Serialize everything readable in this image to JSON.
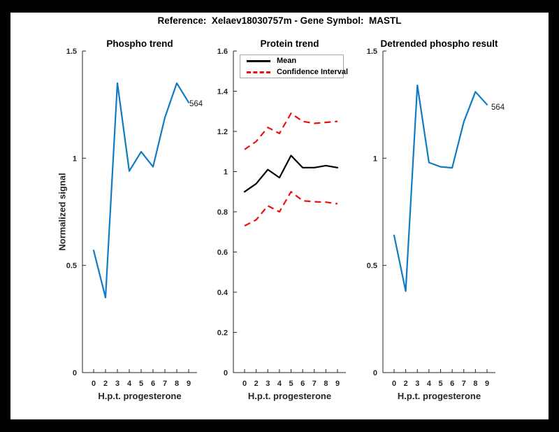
{
  "figure": {
    "title": "Reference:  Xelaev18030757m - Gene Symbol:  MASTL"
  },
  "colors": {
    "page_background": "#000000",
    "canvas_background": "#ffffff",
    "axis": "#262626",
    "phospho_line": "#0f7bc4",
    "mean_line": "#000000",
    "confidence_line": "#f20d0d"
  },
  "chart_data": [
    {
      "type": "line",
      "title": "Phospho trend",
      "xlabel": "H.p.t. progesterone",
      "ylabel": "Normalized signal",
      "x_tick_labels": [
        "0",
        "2",
        "3",
        "4",
        "5",
        "6",
        "7",
        "8",
        "9"
      ],
      "yticks": [
        0,
        0.5,
        1,
        1.5
      ],
      "ylim": [
        0,
        1.5
      ],
      "grid": false,
      "legend": null,
      "end_annotation": "564",
      "series": [
        {
          "name": "Phospho signal",
          "color": "#0f7bc4",
          "style": "solid",
          "values": [
            0.57,
            0.35,
            1.35,
            0.94,
            1.03,
            0.96,
            1.19,
            1.35,
            1.26
          ]
        }
      ]
    },
    {
      "type": "line",
      "title": "Protein trend",
      "xlabel": "H.p.t. progesterone",
      "ylabel": "",
      "x_tick_labels": [
        "0",
        "2",
        "3",
        "4",
        "5",
        "6",
        "7",
        "8",
        "9"
      ],
      "yticks": [
        0,
        0.2,
        0.4,
        0.6,
        0.8,
        1,
        1.2,
        1.4,
        1.6
      ],
      "ylim": [
        0,
        1.6
      ],
      "grid": false,
      "legend": {
        "position": "top-left",
        "entries": [
          {
            "label": "Mean",
            "color": "#000000",
            "style": "solid"
          },
          {
            "label": "Confidence Interval",
            "color": "#f20d0d",
            "style": "dashed"
          }
        ]
      },
      "end_annotation": null,
      "series": [
        {
          "name": "Mean",
          "color": "#000000",
          "style": "solid",
          "values": [
            0.9,
            0.94,
            1.01,
            0.97,
            1.08,
            1.02,
            1.02,
            1.03,
            1.02
          ]
        },
        {
          "name": "Confidence Interval upper",
          "color": "#f20d0d",
          "style": "dashed",
          "values": [
            1.11,
            1.15,
            1.22,
            1.19,
            1.29,
            1.25,
            1.24,
            1.245,
            1.25
          ]
        },
        {
          "name": "Confidence Interval lower",
          "color": "#f20d0d",
          "style": "dashed",
          "values": [
            0.73,
            0.76,
            0.83,
            0.8,
            0.9,
            0.855,
            0.85,
            0.848,
            0.84
          ]
        }
      ]
    },
    {
      "type": "line",
      "title": "Detrended phospho result",
      "xlabel": "H.p.t. progesterone",
      "ylabel": "",
      "x_tick_labels": [
        "0",
        "2",
        "3",
        "4",
        "5",
        "6",
        "7",
        "8",
        "9"
      ],
      "yticks": [
        0,
        0.5,
        1,
        1.5
      ],
      "ylim": [
        0,
        1.5
      ],
      "grid": false,
      "legend": null,
      "end_annotation": "564",
      "series": [
        {
          "name": "Detrended phospho signal",
          "color": "#0f7bc4",
          "style": "solid",
          "values": [
            0.64,
            0.38,
            1.34,
            0.98,
            0.96,
            0.955,
            1.17,
            1.31,
            1.25
          ]
        }
      ]
    }
  ]
}
